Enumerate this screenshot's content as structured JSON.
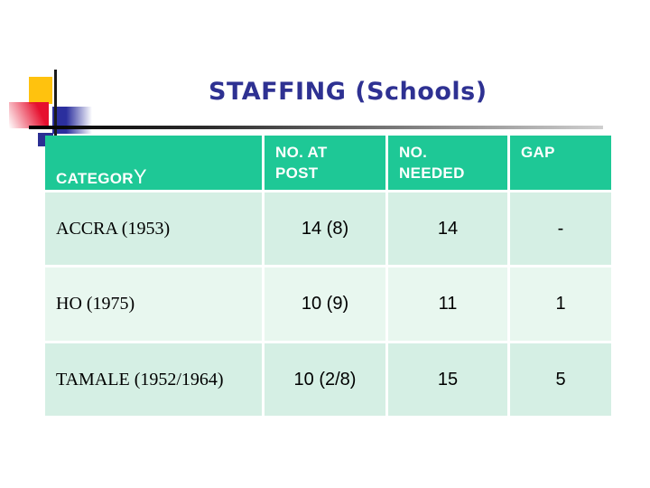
{
  "slide": {
    "title": "STAFFING (Schools)",
    "title_color": "#2e3192",
    "background_color": "#ffffff"
  },
  "decoration": {
    "yellow_square_color": "#ffc20e",
    "red_square_color": "#e60f2e",
    "blue_square_color": "#2b2f9e",
    "navy_square_color": "#2b2f93",
    "line_color": "#1a1a1a"
  },
  "table": {
    "header_bg": "#1ec896",
    "header_text_color": "#ffffff",
    "row_bg_odd": "#d5efe4",
    "row_bg_even": "#e8f7ef",
    "columns": {
      "category_main": "CATEGOR",
      "category_suffix": "Y",
      "at_post": "NO. AT\nPOST",
      "needed": "NO.\nNEEDED",
      "gap": "GAP"
    },
    "rows": [
      {
        "category": "ACCRA (1953)",
        "at_post": "14 (8)",
        "needed": "14",
        "gap": "-"
      },
      {
        "category": "HO (1975)",
        "at_post": "10 (9)",
        "needed": "11",
        "gap": "1"
      },
      {
        "category": "TAMALE (1952/1964)",
        "at_post": "10 (2/8)",
        "needed": "15",
        "gap": "5"
      }
    ]
  }
}
